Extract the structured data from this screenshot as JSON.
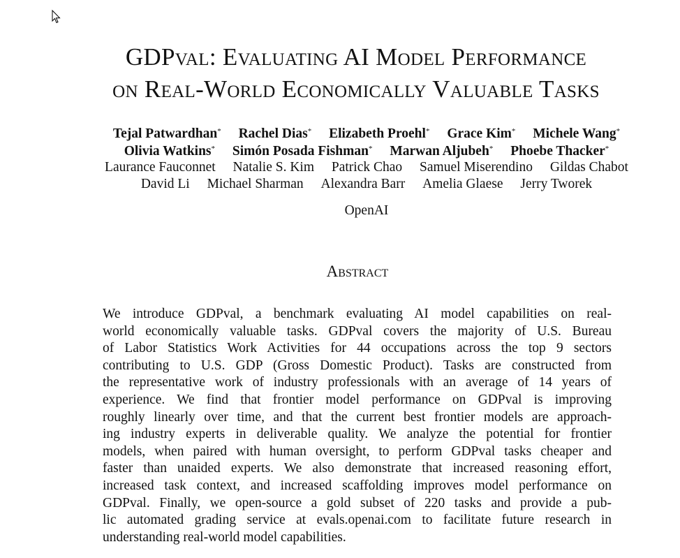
{
  "title": {
    "line1": "GDPval:  Evaluating AI Model Performance",
    "line2": "on Real-World Economically Valuable Tasks"
  },
  "authors": {
    "row1": [
      "Tejal Patwardhan",
      "Rachel Dias",
      "Elizabeth Proehl",
      "Grace Kim",
      "Michele Wang"
    ],
    "row2": [
      "Olivia Watkins",
      "Simón Posada Fishman",
      "Marwan Aljubeh",
      "Phoebe Thacker"
    ],
    "row3": [
      "Laurance Fauconnet",
      "Natalie S. Kim",
      "Patrick Chao",
      "Samuel Miserendino",
      "Gildas Chabot"
    ],
    "row4": [
      "David Li",
      "Michael Sharman",
      "Alexandra Barr",
      "Amelia Glaese",
      "Jerry Tworek"
    ],
    "equal_contribution_mark": "*",
    "affiliation": "OpenAI"
  },
  "abstract": {
    "heading": "Abstract",
    "lines": [
      "We introduce GDPval, a benchmark evaluating AI model capabilities on real-",
      "world economically valuable tasks. GDPval covers the majority of U.S. Bureau",
      "of Labor Statistics Work Activities for 44 occupations across the top 9 sectors",
      "contributing to U.S. GDP (Gross Domestic Product). Tasks are constructed from",
      "the representative work of industry professionals with an average of 14 years of",
      "experience. We find that frontier model performance on GDPval is improving",
      "roughly linearly over time, and that the current best frontier models are approach-",
      "ing industry experts in deliverable quality. We analyze the potential for frontier",
      "models, when paired with human oversight, to perform GDPval tasks cheaper and",
      "faster than unaided experts. We also demonstrate that increased reasoning effort,",
      "increased task context, and increased scaffolding improves model performance on",
      "GDPval. Finally, we open-source a gold subset of 220 tasks and provide a pub-",
      "lic automated grading service at evals.openai.com to facilitate future research in",
      "understanding real-world model capabilities."
    ]
  },
  "cursor_icon": "arrow-pointer-icon"
}
